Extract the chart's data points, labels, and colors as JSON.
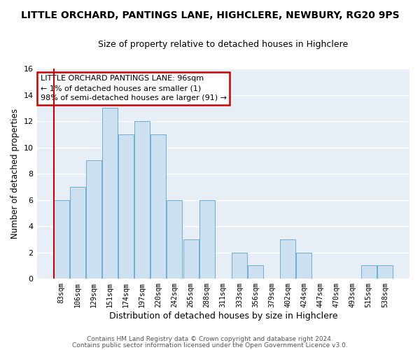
{
  "title": "LITTLE ORCHARD, PANTINGS LANE, HIGHCLERE, NEWBURY, RG20 9PS",
  "subtitle": "Size of property relative to detached houses in Highclere",
  "xlabel": "Distribution of detached houses by size in Highclere",
  "ylabel": "Number of detached properties",
  "bar_color": "#cce0f0",
  "bar_edge_color": "#6aaed6",
  "highlight_line_color": "#cc0000",
  "categories": [
    "83sqm",
    "106sqm",
    "129sqm",
    "151sqm",
    "174sqm",
    "197sqm",
    "220sqm",
    "242sqm",
    "265sqm",
    "288sqm",
    "311sqm",
    "333sqm",
    "356sqm",
    "379sqm",
    "402sqm",
    "424sqm",
    "447sqm",
    "470sqm",
    "493sqm",
    "515sqm",
    "538sqm"
  ],
  "values": [
    6,
    7,
    9,
    13,
    11,
    12,
    11,
    6,
    3,
    6,
    0,
    2,
    1,
    0,
    3,
    2,
    0,
    0,
    0,
    1,
    1
  ],
  "highlight_index": 0,
  "ylim": [
    0,
    16
  ],
  "yticks": [
    0,
    2,
    4,
    6,
    8,
    10,
    12,
    14,
    16
  ],
  "annotation_title": "LITTLE ORCHARD PANTINGS LANE: 96sqm",
  "annotation_line1": "← 1% of detached houses are smaller (1)",
  "annotation_line2": "98% of semi-detached houses are larger (91) →",
  "footer1": "Contains HM Land Registry data © Crown copyright and database right 2024.",
  "footer2": "Contains public sector information licensed under the Open Government Licence v3.0.",
  "background_color": "#ffffff",
  "plot_bg_color": "#e8eef5",
  "grid_color": "#ffffff",
  "title_fontsize": 10,
  "subtitle_fontsize": 9
}
